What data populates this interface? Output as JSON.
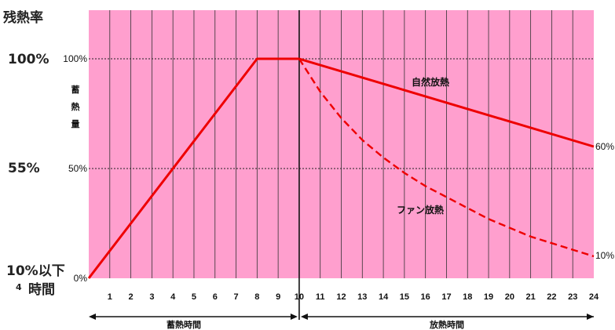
{
  "left_labels": {
    "heading": "残熱率",
    "p100": "100%",
    "p55": "55%",
    "p10": "10%以下",
    "hours_prefix": "4",
    "hours": "時間"
  },
  "chart_data": {
    "type": "line",
    "xlabel": "",
    "ylabel": "蓄熱量",
    "x_ticks": [
      "1",
      "2",
      "3",
      "4",
      "5",
      "6",
      "7",
      "8",
      "9",
      "10",
      "11",
      "12",
      "13",
      "14",
      "15",
      "16",
      "17",
      "18",
      "19",
      "20",
      "21",
      "22",
      "23",
      "24"
    ],
    "y_ticks": [
      "0%",
      "50%",
      "100%"
    ],
    "xlim": [
      0,
      24
    ],
    "ylim": [
      0,
      100
    ],
    "series": [
      {
        "name": "",
        "style": "solid",
        "x": [
          0,
          8,
          10
        ],
        "y": [
          0,
          100,
          100
        ]
      },
      {
        "name": "自然放熱",
        "style": "solid",
        "x": [
          10,
          24
        ],
        "y": [
          100,
          60
        ]
      },
      {
        "name": "ファン放熱",
        "style": "dashed",
        "x": [
          10,
          11,
          12,
          13,
          14,
          15,
          16,
          17,
          18,
          19,
          20,
          21,
          22,
          23,
          24
        ],
        "y": [
          100,
          85,
          73,
          63,
          55,
          48,
          42,
          37,
          32,
          27,
          23,
          19,
          16,
          13,
          10
        ]
      }
    ],
    "end_labels": {
      "natural": "60%",
      "fan": "10%"
    },
    "phases": {
      "charge": "蓄熱時間",
      "discharge": "放熱時間"
    },
    "colors": {
      "background": "#ff9fce",
      "line": "#ee0000",
      "grid": "#333333"
    }
  }
}
